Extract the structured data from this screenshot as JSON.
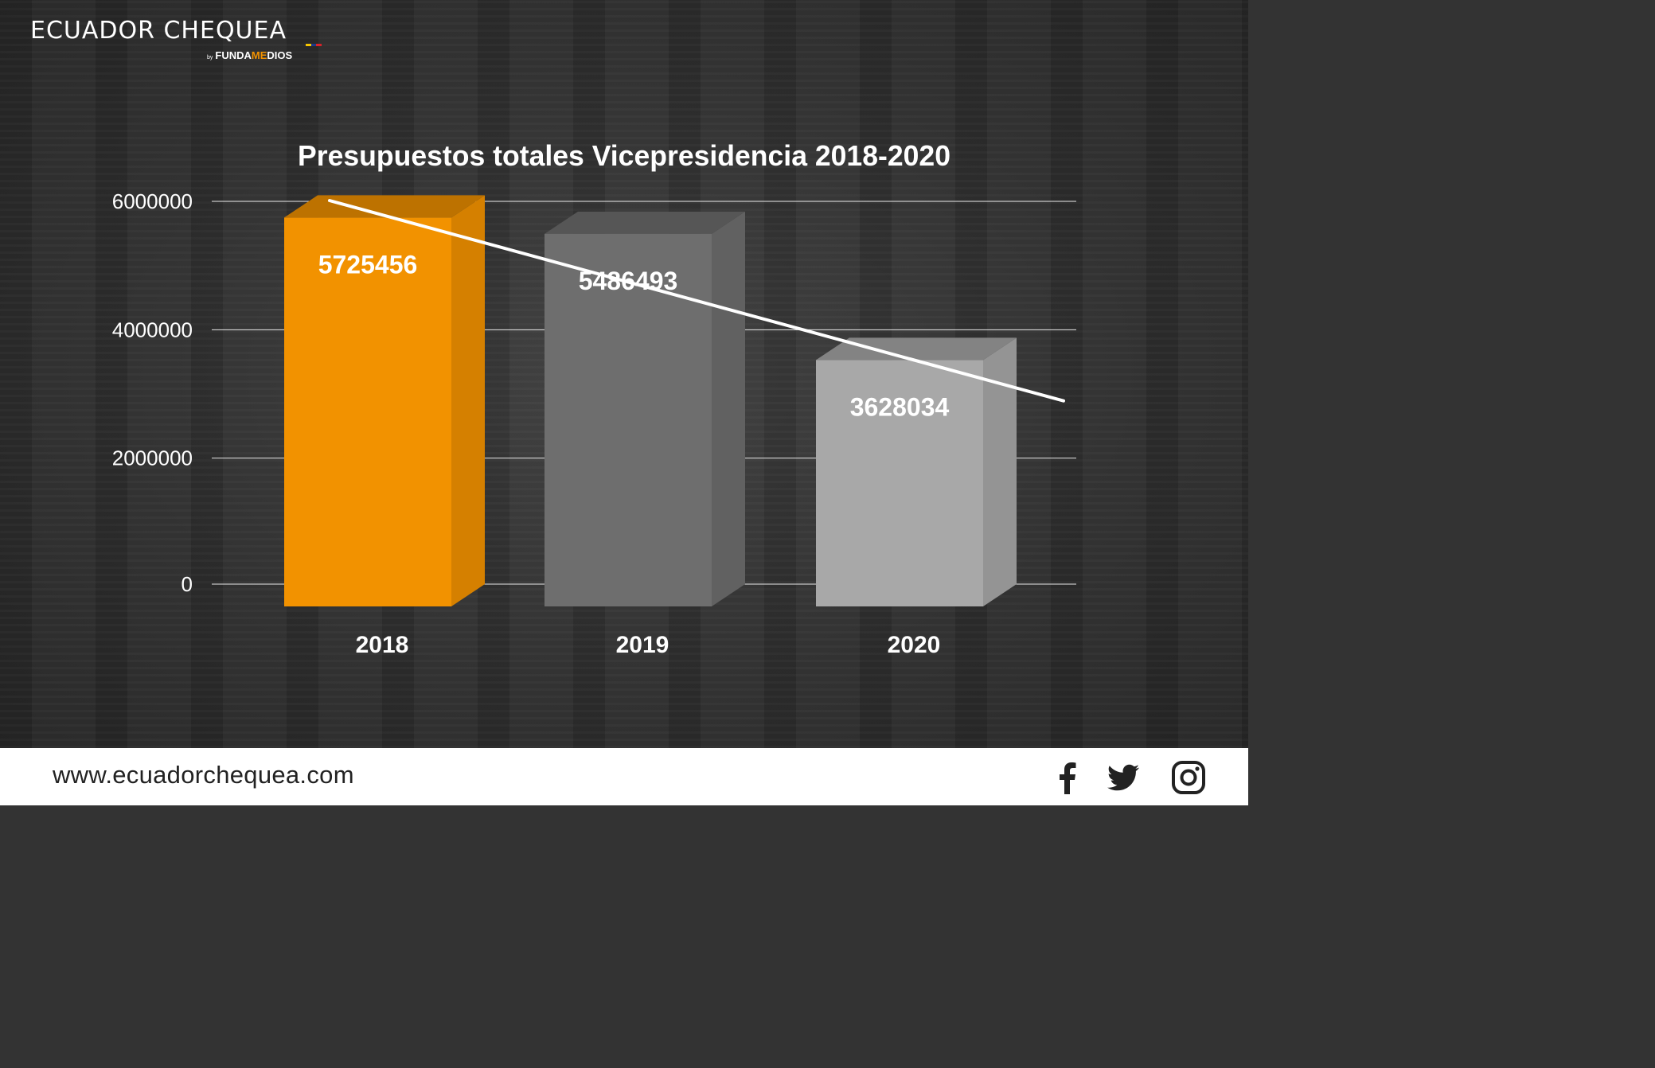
{
  "brand": {
    "name": "ECUADOR CHEQUEA",
    "by": "by",
    "publisher_a": "FUNDA",
    "publisher_b": "ME",
    "publisher_c": "DIOS",
    "flag_colors": [
      "#f7c600",
      "#1b3a8a",
      "#d8232a"
    ]
  },
  "chart_data": {
    "type": "bar",
    "title": "Presupuestos totales Vicepresidencia 2018-2020",
    "categories": [
      "2018",
      "2019",
      "2020"
    ],
    "values": [
      5725456,
      5486493,
      3628034
    ],
    "data_labels": [
      "5725456",
      "5486493",
      "3628034"
    ],
    "y_ticks": [
      "0",
      "2000000",
      "4000000",
      "6000000"
    ],
    "ylim": [
      0,
      6000000
    ],
    "bar_colors": [
      "#f29200",
      "#6e6e6e",
      "#a8a8a8"
    ],
    "trendline": {
      "start": 6000000,
      "end": 2880000
    },
    "grid": true,
    "legend": "none",
    "style": "3d-column"
  },
  "footer": {
    "url": "www.ecuadorchequea.com",
    "icons": [
      "facebook-icon",
      "twitter-icon",
      "instagram-icon"
    ]
  }
}
